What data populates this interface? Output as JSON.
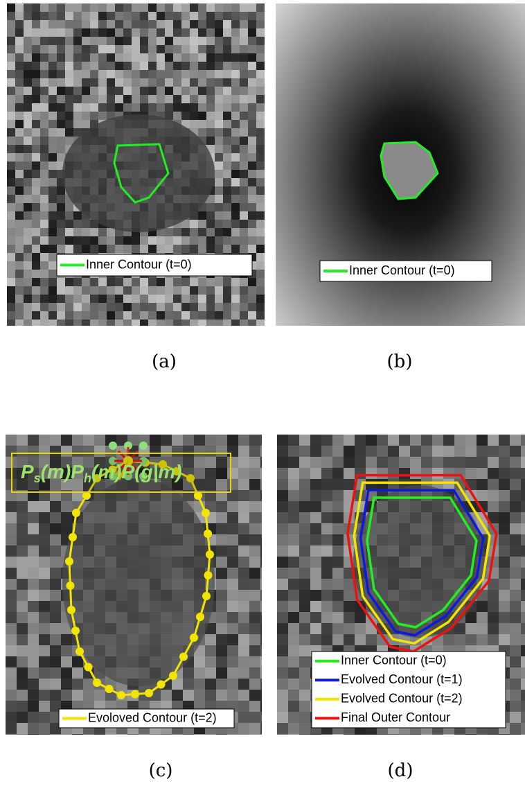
{
  "panels": [
    {
      "caption": "(a)",
      "legend": [
        {
          "label": "Inner Contour (t=0)",
          "color": "#22ee22"
        }
      ]
    },
    {
      "caption": "(b)",
      "legend": [
        {
          "label": "Inner Contour (t=0)",
          "color": "#22ee22"
        }
      ]
    },
    {
      "caption": "(c)",
      "legend": [
        {
          "label": "Evoloved Contour (t=2)",
          "color": "#f2e600"
        }
      ]
    },
    {
      "caption": "(d)",
      "legend": [
        {
          "label": "Inner Contour (t=0)",
          "color": "#22ee22"
        },
        {
          "label": "Evolved Contour (t=1)",
          "color": "#0a1adf"
        },
        {
          "label": "Evolved Contour (t=2)",
          "color": "#f2e600"
        },
        {
          "label": "Final Outer Contour",
          "color": "#ee1111"
        }
      ]
    }
  ],
  "formula": [
    "P",
    "s",
    "(m)P",
    "h",
    "(m)P(g|m)"
  ]
}
